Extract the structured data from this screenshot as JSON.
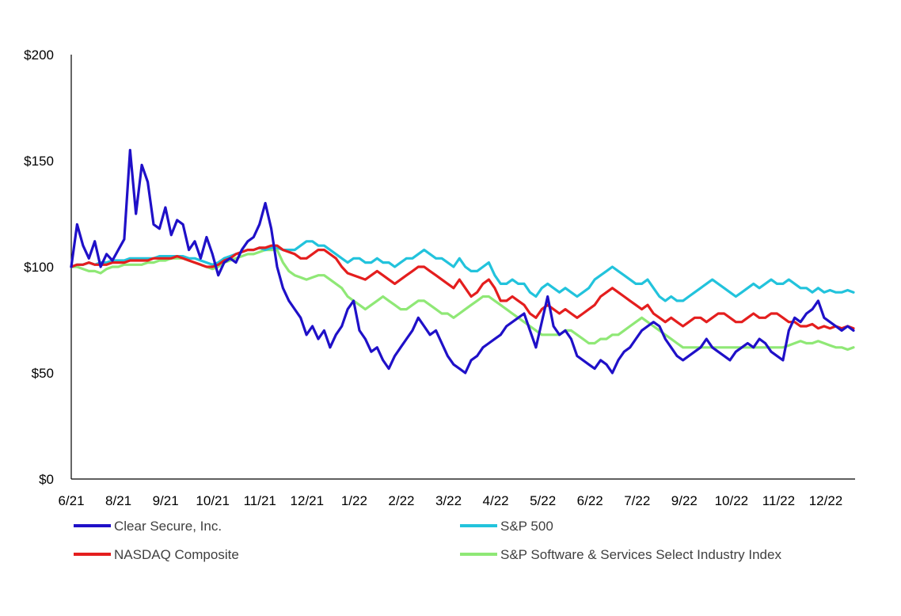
{
  "chart_data": {
    "type": "line",
    "title": "",
    "xlabel": "",
    "ylabel": "",
    "ylim": [
      0,
      200
    ],
    "y_ticks": [
      {
        "value": 0,
        "label": "$0"
      },
      {
        "value": 50,
        "label": "$50"
      },
      {
        "value": 100,
        "label": "$100"
      },
      {
        "value": 150,
        "label": "$150"
      },
      {
        "value": 200,
        "label": "$200"
      }
    ],
    "x_ticks": [
      "6/21",
      "8/21",
      "9/21",
      "10/21",
      "11/21",
      "12/21",
      "1/22",
      "2/22",
      "3/22",
      "4/22",
      "5/22",
      "6/22",
      "7/22",
      "9/22",
      "10/22",
      "11/22",
      "12/22"
    ],
    "grid": false,
    "legend_position": "bottom",
    "series": [
      {
        "name": "Clear Secure, Inc.",
        "color": "#1f10c8",
        "values": [
          100,
          120,
          110,
          104,
          112,
          100,
          106,
          103,
          108,
          113,
          155,
          125,
          148,
          140,
          120,
          118,
          128,
          115,
          122,
          120,
          108,
          112,
          104,
          114,
          106,
          96,
          102,
          104,
          102,
          108,
          112,
          114,
          120,
          130,
          118,
          100,
          90,
          84,
          80,
          76,
          68,
          72,
          66,
          70,
          62,
          68,
          72,
          80,
          84,
          70,
          66,
          60,
          62,
          56,
          52,
          58,
          62,
          66,
          70,
          76,
          72,
          68,
          70,
          64,
          58,
          54,
          52,
          50,
          56,
          58,
          62,
          64,
          66,
          68,
          72,
          74,
          76,
          78,
          70,
          62,
          74,
          86,
          72,
          68,
          70,
          66,
          58,
          56,
          54,
          52,
          56,
          54,
          50,
          56,
          60,
          62,
          66,
          70,
          72,
          74,
          72,
          66,
          62,
          58,
          56,
          58,
          60,
          62,
          66,
          62,
          60,
          58,
          56,
          60,
          62,
          64,
          62,
          66,
          64,
          60,
          58,
          56,
          70,
          76,
          74,
          78,
          80,
          84,
          76,
          74,
          72,
          70,
          72,
          70
        ]
      },
      {
        "name": "S&P 500",
        "color": "#22c3dc",
        "values": [
          100,
          101,
          101,
          102,
          101,
          102,
          102,
          103,
          103,
          103,
          104,
          104,
          104,
          104,
          104,
          105,
          105,
          105,
          105,
          105,
          104,
          104,
          103,
          102,
          101,
          102,
          104,
          105,
          106,
          107,
          108,
          108,
          109,
          108,
          109,
          109,
          108,
          108,
          108,
          110,
          112,
          112,
          110,
          110,
          108,
          106,
          104,
          102,
          104,
          104,
          102,
          102,
          104,
          102,
          102,
          100,
          102,
          104,
          104,
          106,
          108,
          106,
          104,
          104,
          102,
          100,
          104,
          100,
          98,
          98,
          100,
          102,
          96,
          92,
          92,
          94,
          92,
          92,
          88,
          86,
          90,
          92,
          90,
          88,
          90,
          88,
          86,
          88,
          90,
          94,
          96,
          98,
          100,
          98,
          96,
          94,
          92,
          92,
          94,
          90,
          86,
          84,
          86,
          84,
          84,
          86,
          88,
          90,
          92,
          94,
          92,
          90,
          88,
          86,
          88,
          90,
          92,
          90,
          92,
          94,
          92,
          92,
          94,
          92,
          90,
          90,
          88,
          90,
          88,
          89,
          88,
          88,
          89,
          88
        ]
      },
      {
        "name": "NASDAQ Composite",
        "color": "#e41e1e",
        "values": [
          100,
          101,
          101,
          102,
          101,
          101,
          101,
          102,
          102,
          102,
          103,
          103,
          103,
          103,
          104,
          104,
          104,
          104,
          105,
          104,
          103,
          102,
          101,
          100,
          100,
          101,
          103,
          104,
          106,
          107,
          108,
          108,
          109,
          109,
          110,
          110,
          108,
          107,
          106,
          104,
          104,
          106,
          108,
          108,
          106,
          104,
          100,
          97,
          96,
          95,
          94,
          96,
          98,
          96,
          94,
          92,
          94,
          96,
          98,
          100,
          100,
          98,
          96,
          94,
          92,
          90,
          94,
          90,
          86,
          88,
          92,
          94,
          90,
          84,
          84,
          86,
          84,
          82,
          78,
          76,
          80,
          82,
          80,
          78,
          80,
          78,
          76,
          78,
          80,
          82,
          86,
          88,
          90,
          88,
          86,
          84,
          82,
          80,
          82,
          78,
          76,
          74,
          76,
          74,
          72,
          74,
          76,
          76,
          74,
          76,
          78,
          78,
          76,
          74,
          74,
          76,
          78,
          76,
          76,
          78,
          78,
          76,
          74,
          74,
          72,
          72,
          73,
          71,
          72,
          71,
          72,
          71,
          72,
          71
        ]
      },
      {
        "name": "S&P Software & Services Select Industry Index",
        "color": "#8fe876",
        "values": [
          100,
          100,
          99,
          98,
          98,
          97,
          99,
          100,
          100,
          101,
          101,
          101,
          101,
          102,
          102,
          103,
          103,
          104,
          104,
          104,
          103,
          102,
          101,
          100,
          99,
          100,
          102,
          103,
          104,
          105,
          106,
          106,
          107,
          108,
          108,
          108,
          102,
          98,
          96,
          95,
          94,
          95,
          96,
          96,
          94,
          92,
          90,
          86,
          84,
          82,
          80,
          82,
          84,
          86,
          84,
          82,
          80,
          80,
          82,
          84,
          84,
          82,
          80,
          78,
          78,
          76,
          78,
          80,
          82,
          84,
          86,
          86,
          84,
          82,
          80,
          78,
          76,
          74,
          72,
          70,
          68,
          68,
          68,
          68,
          70,
          70,
          68,
          66,
          64,
          64,
          66,
          66,
          68,
          68,
          70,
          72,
          74,
          76,
          74,
          72,
          70,
          68,
          66,
          64,
          62,
          62,
          62,
          62,
          62,
          62,
          62,
          62,
          62,
          62,
          62,
          62,
          62,
          62,
          62,
          62,
          62,
          62,
          63,
          64,
          65,
          64,
          64,
          65,
          64,
          63,
          62,
          62,
          61,
          62
        ]
      }
    ]
  }
}
